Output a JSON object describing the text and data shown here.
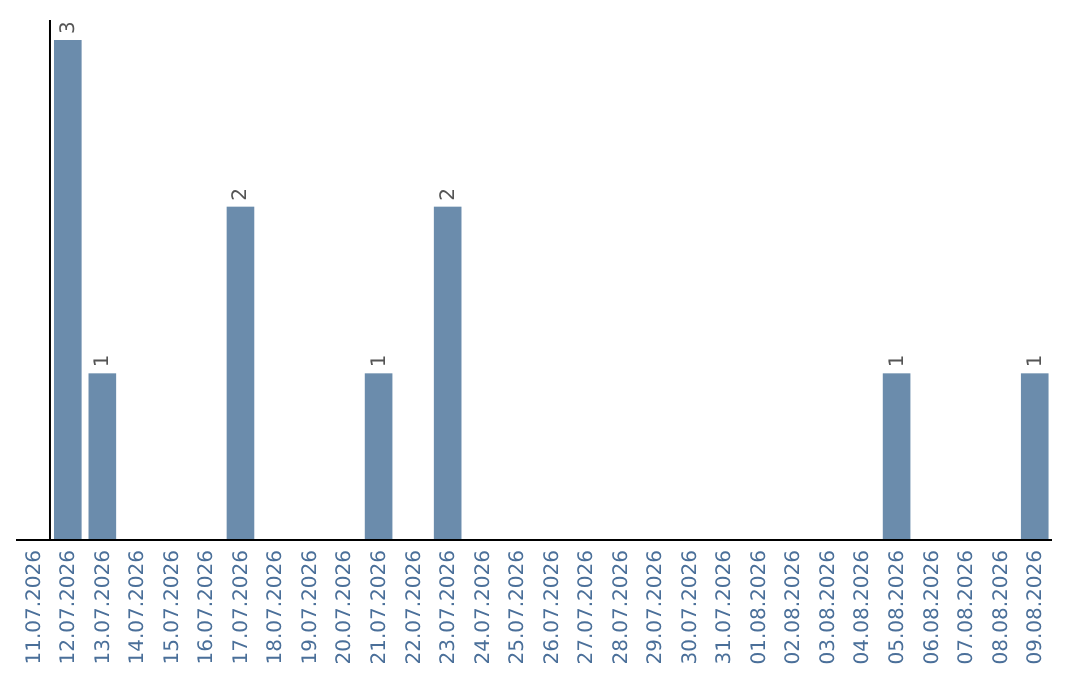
{
  "chart_data": {
    "type": "bar",
    "categories": [
      "11.07.2026",
      "12.07.2026",
      "13.07.2026",
      "14.07.2026",
      "15.07.2026",
      "16.07.2026",
      "17.07.2026",
      "18.07.2026",
      "19.07.2026",
      "20.07.2026",
      "21.07.2026",
      "22.07.2026",
      "23.07.2026",
      "24.07.2026",
      "25.07.2026",
      "26.07.2026",
      "27.07.2026",
      "28.07.2026",
      "29.07.2026",
      "30.07.2026",
      "31.07.2026",
      "01.08.2026",
      "02.08.2026",
      "03.08.2026",
      "04.08.2026",
      "05.08.2026",
      "06.08.2026",
      "07.08.2026",
      "08.08.2026",
      "09.08.2026"
    ],
    "values": [
      0,
      3,
      1,
      0,
      0,
      0,
      2,
      0,
      0,
      0,
      1,
      0,
      2,
      0,
      0,
      0,
      0,
      0,
      0,
      0,
      0,
      0,
      0,
      0,
      0,
      1,
      0,
      0,
      0,
      1
    ],
    "value_labels": [
      null,
      "3",
      "1",
      null,
      null,
      null,
      "2",
      null,
      null,
      null,
      "1",
      null,
      "2",
      null,
      null,
      null,
      null,
      null,
      null,
      null,
      null,
      null,
      null,
      null,
      null,
      "1",
      null,
      null,
      null,
      "1"
    ],
    "color": "#6b8cac"
  }
}
